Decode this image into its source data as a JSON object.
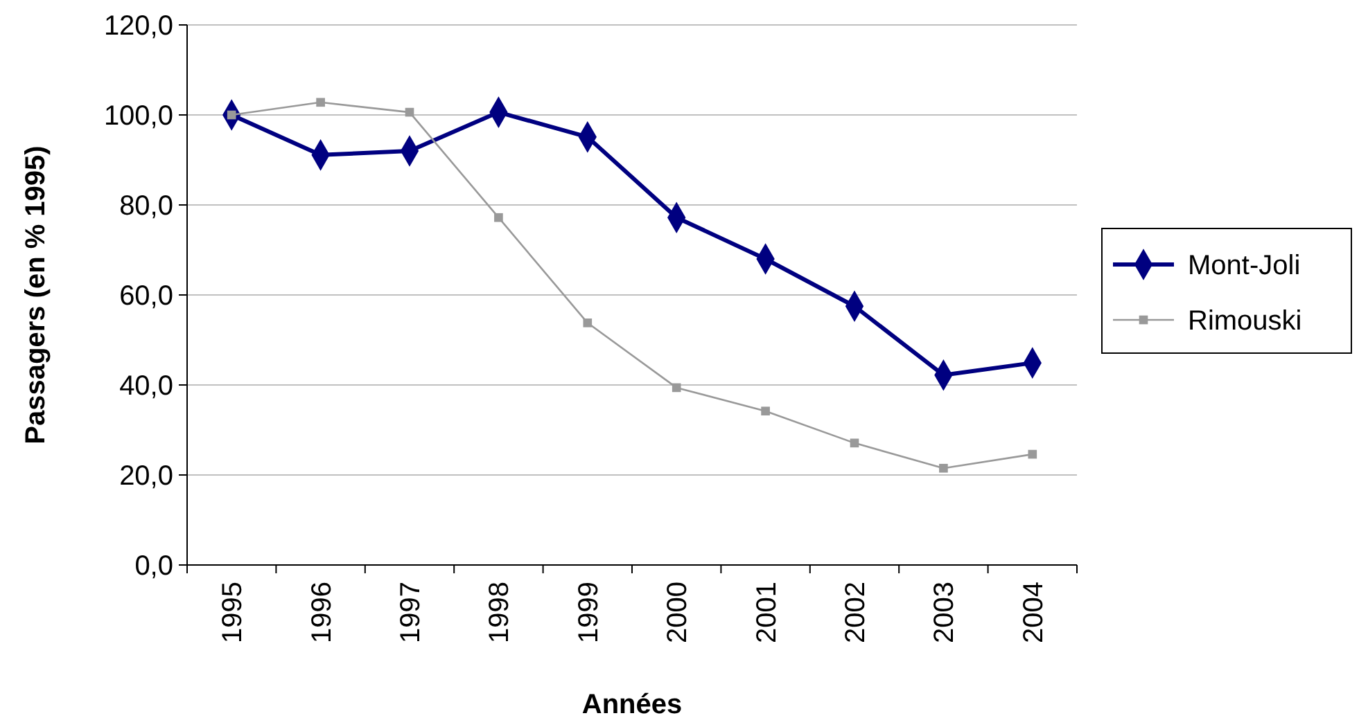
{
  "chart_data": {
    "type": "line",
    "xlabel": "Années",
    "ylabel": "Passagers (en % 1995)",
    "categories": [
      "1995",
      "1996",
      "1997",
      "1998",
      "1999",
      "2000",
      "2001",
      "2002",
      "2003",
      "2004"
    ],
    "series": [
      {
        "name": "Mont-Joli",
        "color": "#000080",
        "marker": "diamond",
        "values": [
          100,
          91.1,
          92,
          100.6,
          95.1,
          77.2,
          68,
          57.5,
          42.2,
          44.9
        ]
      },
      {
        "name": "Rimouski",
        "color": "#999999",
        "marker": "square",
        "values": [
          100,
          102.8,
          100.6,
          77.2,
          53.8,
          39.4,
          34.2,
          27.1,
          21.5,
          24.6
        ]
      }
    ],
    "ylim": [
      0,
      120
    ],
    "yticks": [
      {
        "value": 0,
        "label": "0,0"
      },
      {
        "value": 20,
        "label": "20,0"
      },
      {
        "value": 40,
        "label": "40,0"
      },
      {
        "value": 60,
        "label": "60,0"
      },
      {
        "value": 80,
        "label": "80,0"
      },
      {
        "value": 100,
        "label": "100,0"
      },
      {
        "value": 120,
        "label": "120,0"
      }
    ],
    "grid": "y",
    "legend": "right",
    "line_style": "solid"
  }
}
